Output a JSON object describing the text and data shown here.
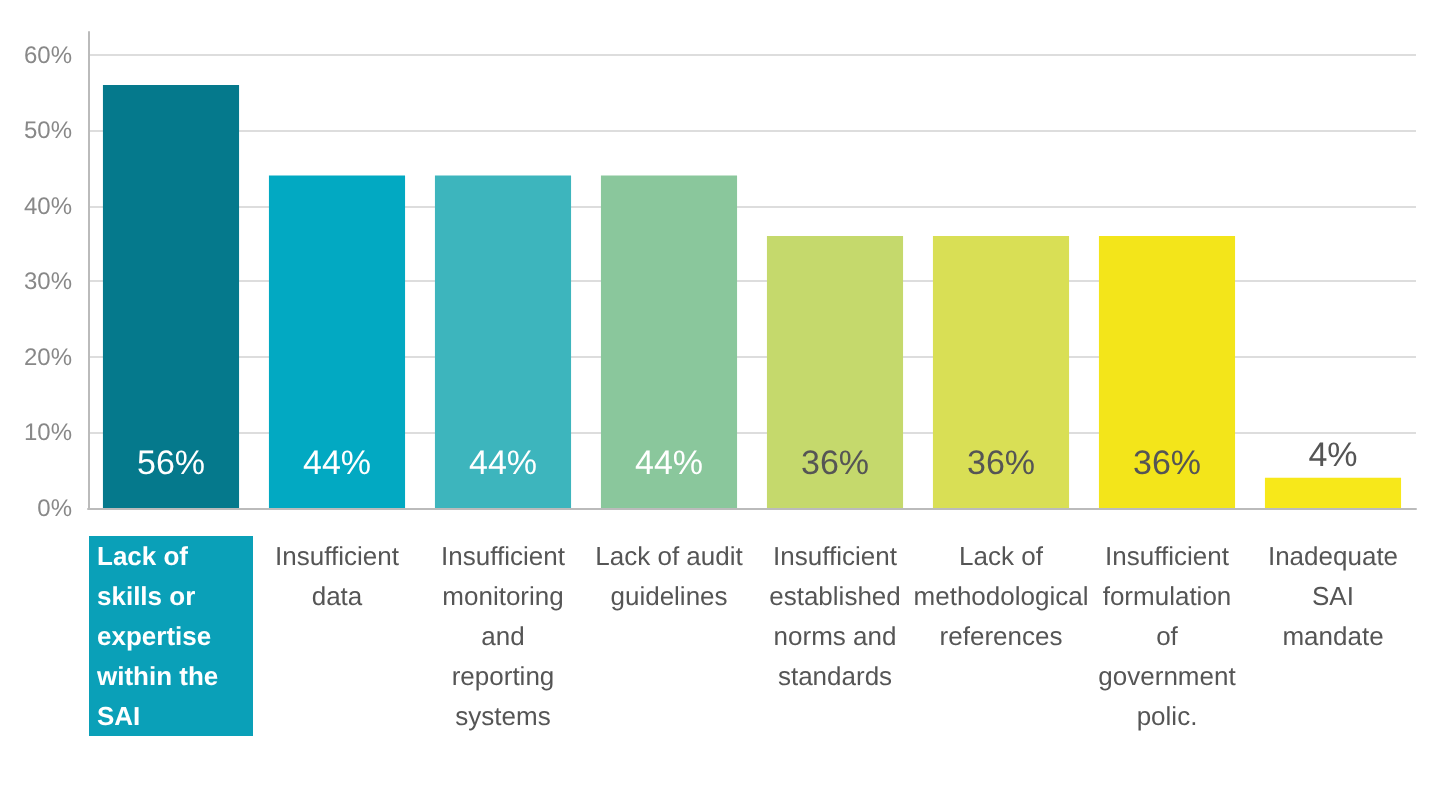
{
  "chart_data": {
    "type": "bar",
    "categories": [
      "Lack of skills or expertise within the SAI",
      "Insufficient data",
      "Insufficient monitoring and reporting systems",
      "Lack of audit guidelines",
      "Insufficient established norms and standards",
      "Lack of methodological references",
      "Insufficient formulation of government polic.",
      "Inadequate SAI mandate"
    ],
    "values": [
      56,
      44,
      44,
      44,
      36,
      36,
      36,
      4
    ],
    "value_labels": [
      "56%",
      "44%",
      "44%",
      "44%",
      "36%",
      "36%",
      "36%",
      "4%"
    ],
    "colors": [
      "#05798c",
      "#02a9c2",
      "#3db5bd",
      "#8ac79c",
      "#c5d96c",
      "#d9df55",
      "#f3e51a",
      "#f7e81a"
    ],
    "ylim": [
      0,
      63
    ],
    "yticks": [
      {
        "value": 0,
        "label": "0%"
      },
      {
        "value": 10,
        "label": "10%"
      },
      {
        "value": 20,
        "label": "20%"
      },
      {
        "value": 30,
        "label": "30%"
      },
      {
        "value": 40,
        "label": "40%"
      },
      {
        "value": 50,
        "label": "50%"
      },
      {
        "value": 60,
        "label": "60%"
      }
    ],
    "grid": "y"
  }
}
